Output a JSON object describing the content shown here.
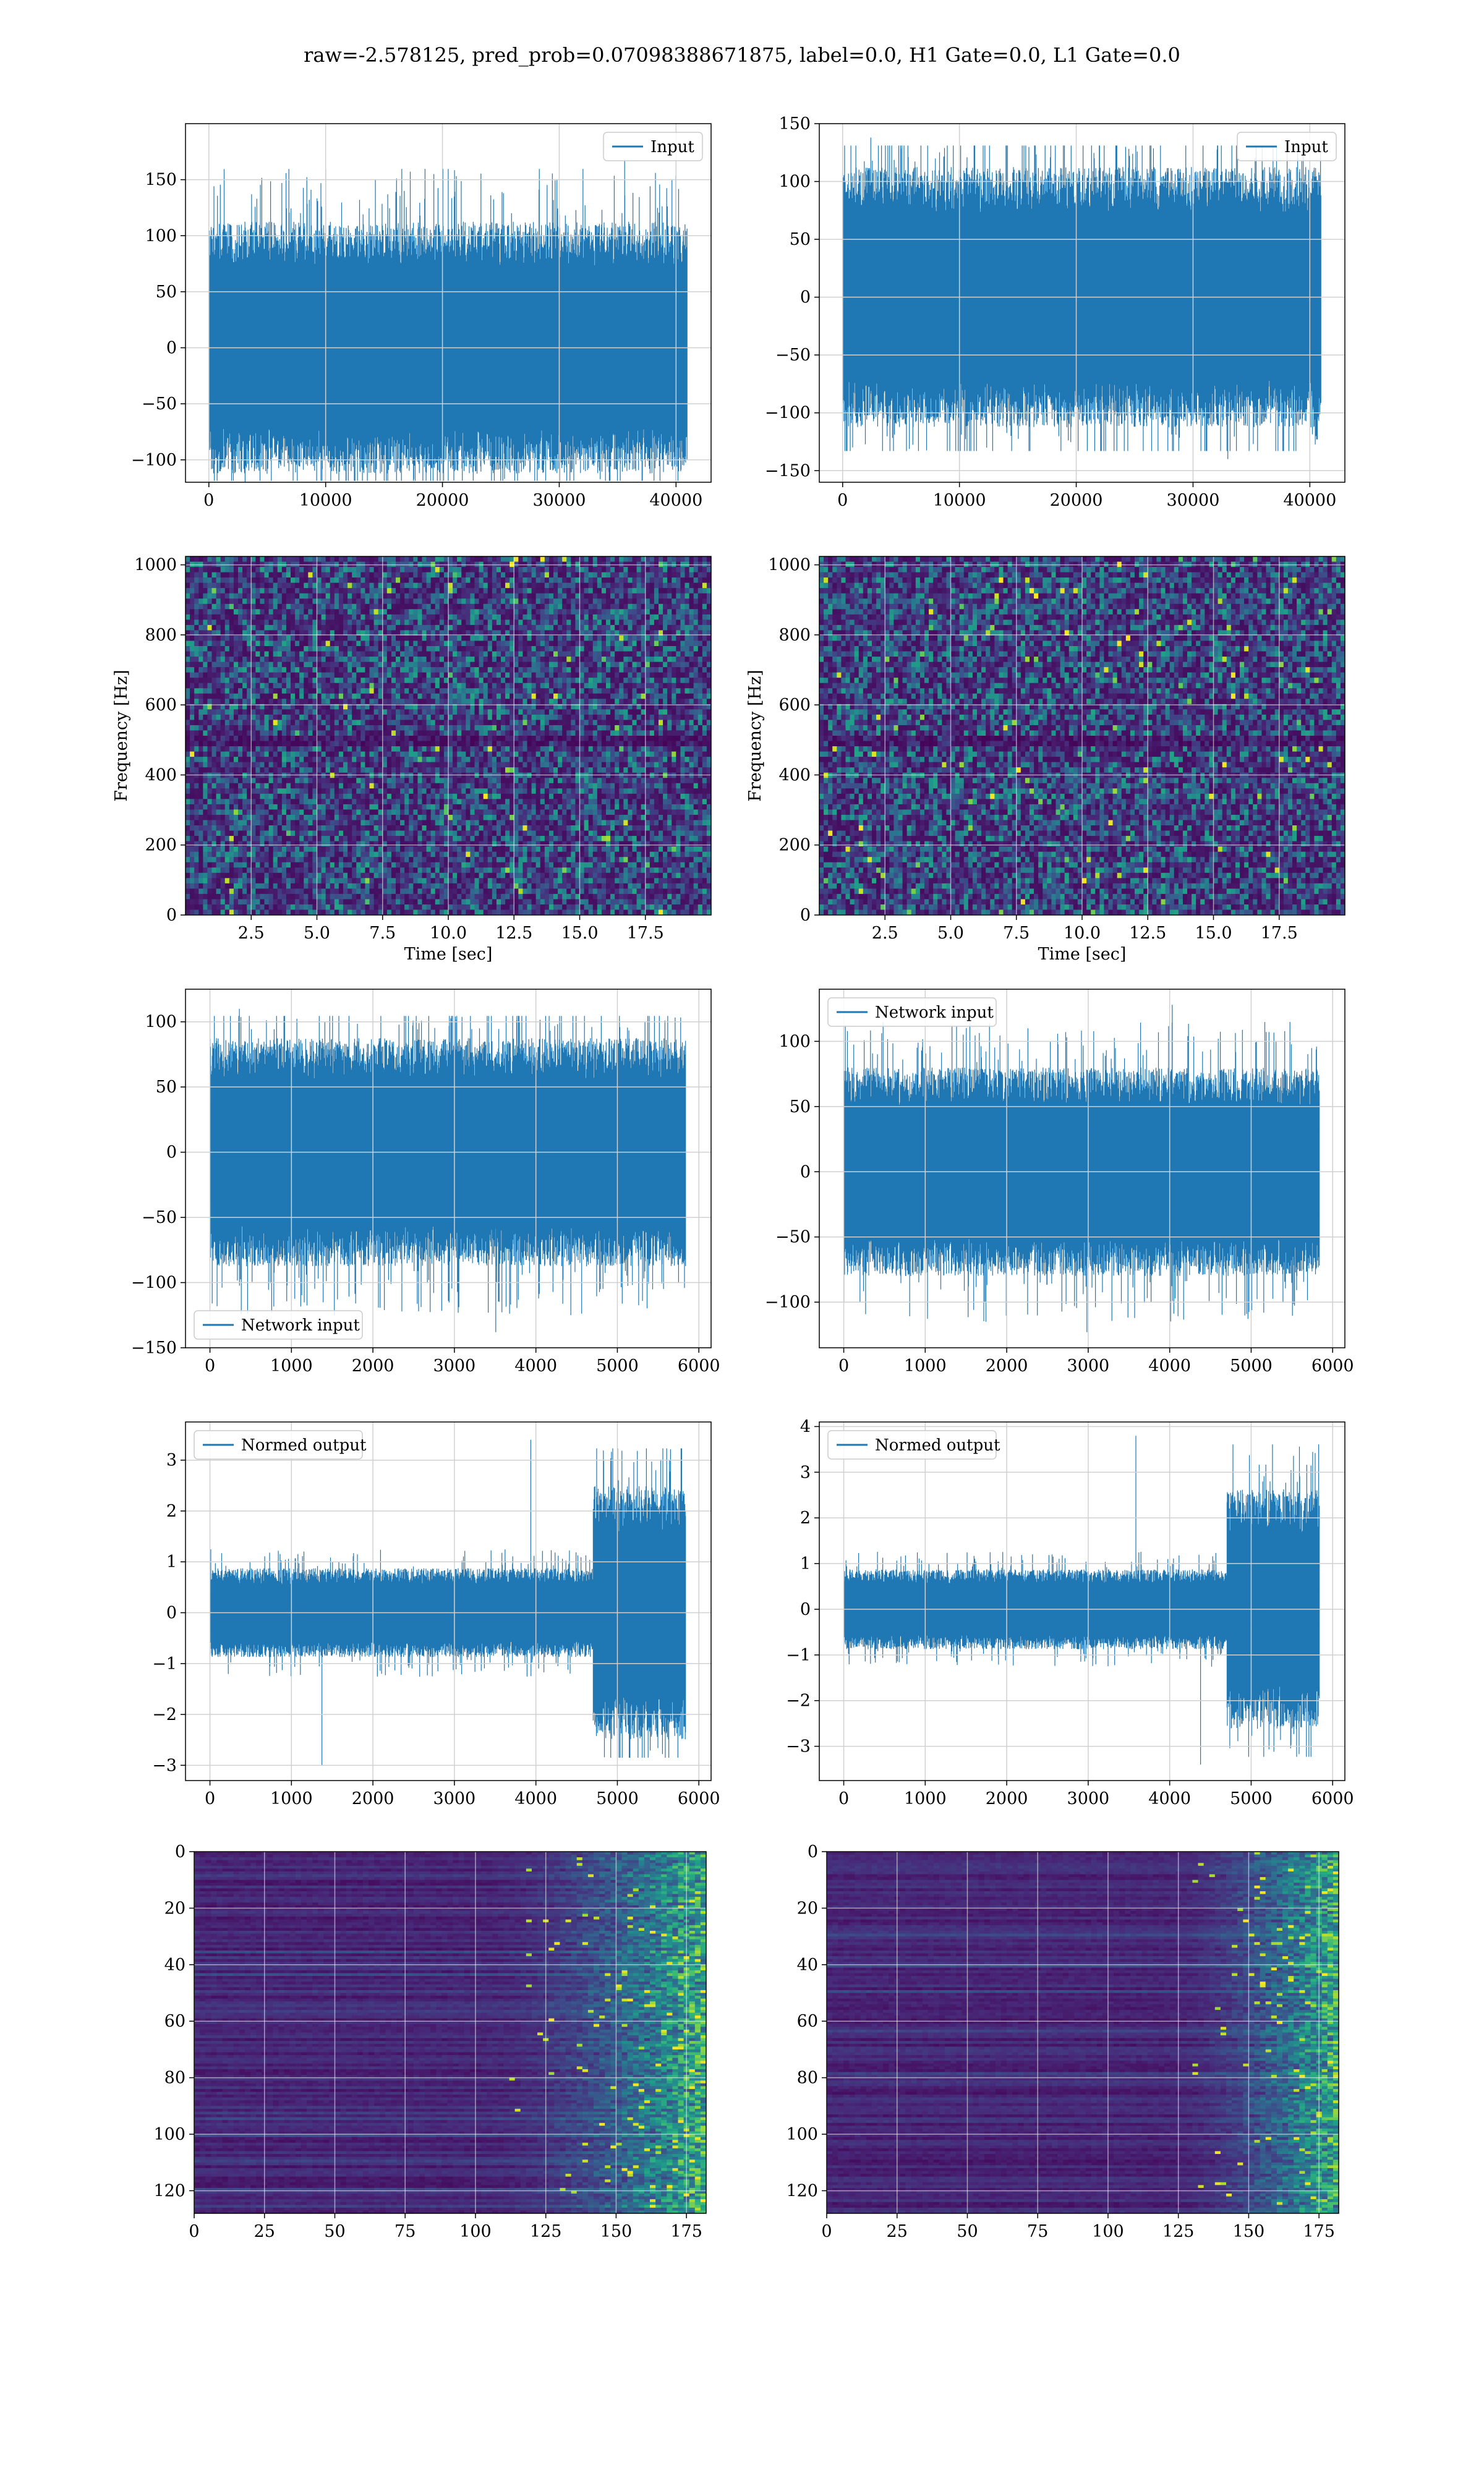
{
  "figure": {
    "title": "raw=-2.578125, pred_prob=0.07098388671875, label=0.0, H1 Gate=0.0, L1 Gate=0.0",
    "line_color": "#1f77b4"
  },
  "chart_data": [
    {
      "id": "h1-input",
      "type": "line",
      "series": [
        {
          "name": "Input",
          "n": 40960,
          "typical_amplitude": 45,
          "approx_min": -125,
          "approx_max": 168
        }
      ],
      "xlim": [
        -2000,
        43000
      ],
      "ylim": [
        -120,
        200
      ],
      "xticks": [
        0,
        10000,
        20000,
        30000,
        40000
      ],
      "xtick_labels": [
        "0",
        "10000",
        "20000",
        "30000",
        "40000"
      ],
      "yticks": [
        -100,
        -50,
        0,
        50,
        100,
        150
      ],
      "ytick_labels": [
        "−100",
        "−50",
        "0",
        "50",
        "100",
        "150"
      ],
      "legend": "upper right",
      "legend_label": "Input",
      "grid": true
    },
    {
      "id": "l1-input",
      "type": "line",
      "series": [
        {
          "name": "Input",
          "n": 40960,
          "typical_amplitude": 45,
          "approx_min": -140,
          "approx_max": 138
        }
      ],
      "xlim": [
        -2000,
        43000
      ],
      "ylim": [
        -160,
        150
      ],
      "xticks": [
        0,
        10000,
        20000,
        30000,
        40000
      ],
      "xtick_labels": [
        "0",
        "10000",
        "20000",
        "30000",
        "40000"
      ],
      "yticks": [
        -150,
        -100,
        -50,
        0,
        50,
        100,
        150
      ],
      "ytick_labels": [
        "−150",
        "−100",
        "−50",
        "0",
        "50",
        "100",
        "150"
      ],
      "legend": "upper right",
      "legend_label": "Input",
      "grid": true
    },
    {
      "id": "h1-spectrogram",
      "type": "heatmap",
      "colormap": "viridis",
      "xlim": [
        0,
        20
      ],
      "ylim": [
        0,
        1024
      ],
      "xticks": [
        2.5,
        5,
        7.5,
        10,
        12.5,
        15,
        17.5
      ],
      "xtick_labels": [
        "2.5",
        "5.0",
        "7.5",
        "10.0",
        "12.5",
        "15.0",
        "17.5"
      ],
      "yticks": [
        0,
        200,
        400,
        600,
        800,
        1000
      ],
      "ytick_labels": [
        "0",
        "200",
        "400",
        "600",
        "800",
        "1000"
      ],
      "xlabel": "Time [sec]",
      "ylabel": "Frequency [Hz]",
      "grid": true
    },
    {
      "id": "l1-spectrogram",
      "type": "heatmap",
      "colormap": "viridis",
      "xlim": [
        0,
        20
      ],
      "ylim": [
        0,
        1024
      ],
      "xticks": [
        2.5,
        5,
        7.5,
        10,
        12.5,
        15,
        17.5
      ],
      "xtick_labels": [
        "2.5",
        "5.0",
        "7.5",
        "10.0",
        "12.5",
        "15.0",
        "17.5"
      ],
      "yticks": [
        0,
        200,
        400,
        600,
        800,
        1000
      ],
      "ytick_labels": [
        "0",
        "200",
        "400",
        "600",
        "800",
        "1000"
      ],
      "xlabel": "Time [sec]",
      "ylabel": "Frequency [Hz]",
      "grid": true
    },
    {
      "id": "h1-network-input",
      "type": "line",
      "series": [
        {
          "name": "Network input",
          "n": 5840,
          "typical_amplitude": 35,
          "approx_min": -138,
          "approx_max": 110
        }
      ],
      "xlim": [
        -300,
        6150
      ],
      "ylim": [
        -150,
        125
      ],
      "xticks": [
        0,
        1000,
        2000,
        3000,
        4000,
        5000,
        6000
      ],
      "xtick_labels": [
        "0",
        "1000",
        "2000",
        "3000",
        "4000",
        "5000",
        "6000"
      ],
      "yticks": [
        -150,
        -100,
        -50,
        0,
        50,
        100
      ],
      "ytick_labels": [
        "−150",
        "−100",
        "−50",
        "0",
        "50",
        "100"
      ],
      "legend": "lower left",
      "legend_label": "Network input",
      "grid": true
    },
    {
      "id": "l1-network-input",
      "type": "line",
      "series": [
        {
          "name": "Network input",
          "n": 5840,
          "typical_amplitude": 32,
          "approx_min": -123,
          "approx_max": 128
        }
      ],
      "xlim": [
        -300,
        6150
      ],
      "ylim": [
        -135,
        140
      ],
      "xticks": [
        0,
        1000,
        2000,
        3000,
        4000,
        5000,
        6000
      ],
      "xtick_labels": [
        "0",
        "1000",
        "2000",
        "3000",
        "4000",
        "5000",
        "6000"
      ],
      "yticks": [
        -100,
        -50,
        0,
        50,
        100
      ],
      "ytick_labels": [
        "−100",
        "−50",
        "0",
        "50",
        "100"
      ],
      "legend": "upper left",
      "legend_label": "Network input",
      "grid": true
    },
    {
      "id": "h1-normed-output",
      "type": "line",
      "series": [
        {
          "name": "Normed output",
          "n": 5840,
          "typical_amplitude": 0.35,
          "burst_start": 4700,
          "burst_amplitude": 1.0,
          "approx_min": -3.0,
          "approx_max": 3.4
        }
      ],
      "xlim": [
        -300,
        6150
      ],
      "ylim": [
        -3.3,
        3.75
      ],
      "xticks": [
        0,
        1000,
        2000,
        3000,
        4000,
        5000,
        6000
      ],
      "xtick_labels": [
        "0",
        "1000",
        "2000",
        "3000",
        "4000",
        "5000",
        "6000"
      ],
      "yticks": [
        -3,
        -2,
        -1,
        0,
        1,
        2,
        3
      ],
      "ytick_labels": [
        "−3",
        "−2",
        "−1",
        "0",
        "1",
        "2",
        "3"
      ],
      "legend": "upper left",
      "legend_label": "Normed output",
      "grid": true
    },
    {
      "id": "l1-normed-output",
      "type": "line",
      "series": [
        {
          "name": "Normed output",
          "n": 5840,
          "typical_amplitude": 0.35,
          "burst_start": 4700,
          "burst_amplitude": 1.05,
          "approx_min": -3.4,
          "approx_max": 3.8
        }
      ],
      "xlim": [
        -300,
        6150
      ],
      "ylim": [
        -3.75,
        4.1
      ],
      "xticks": [
        0,
        1000,
        2000,
        3000,
        4000,
        5000,
        6000
      ],
      "xtick_labels": [
        "0",
        "1000",
        "2000",
        "3000",
        "4000",
        "5000",
        "6000"
      ],
      "yticks": [
        -3,
        -2,
        -1,
        0,
        1,
        2,
        3,
        4
      ],
      "ytick_labels": [
        "−3",
        "−2",
        "−1",
        "0",
        "1",
        "2",
        "3",
        "4"
      ],
      "legend": "upper left",
      "legend_label": "Normed output",
      "grid": true
    },
    {
      "id": "h1-activation-map",
      "type": "heatmap",
      "colormap": "viridis",
      "rows": 128,
      "cols": 182,
      "hot_from_col": 100,
      "xlim": [
        0,
        182
      ],
      "ylim": [
        128,
        0
      ],
      "xticks": [
        0,
        25,
        50,
        75,
        100,
        125,
        150,
        175
      ],
      "xtick_labels": [
        "0",
        "25",
        "50",
        "75",
        "100",
        "125",
        "150",
        "175"
      ],
      "yticks": [
        0,
        20,
        40,
        60,
        80,
        100,
        120
      ],
      "ytick_labels": [
        "0",
        "20",
        "40",
        "60",
        "80",
        "100",
        "120"
      ],
      "grid": true
    },
    {
      "id": "l1-activation-map",
      "type": "heatmap",
      "colormap": "viridis",
      "rows": 128,
      "cols": 182,
      "hot_from_col": 120,
      "xlim": [
        0,
        182
      ],
      "ylim": [
        128,
        0
      ],
      "xticks": [
        0,
        25,
        50,
        75,
        100,
        125,
        150,
        175
      ],
      "xtick_labels": [
        "0",
        "25",
        "50",
        "75",
        "100",
        "125",
        "150",
        "175"
      ],
      "yticks": [
        0,
        20,
        40,
        60,
        80,
        100,
        120
      ],
      "ytick_labels": [
        "0",
        "20",
        "40",
        "60",
        "80",
        "100",
        "120"
      ],
      "grid": true
    }
  ]
}
